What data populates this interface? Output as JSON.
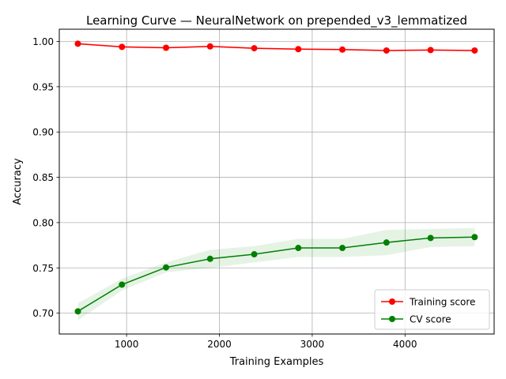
{
  "chart_data": {
    "type": "line",
    "title": "Learning Curve — NeuralNetwork on prepended_v3_lemmatized",
    "xlabel": "Training Examples",
    "ylabel": "Accuracy",
    "xlim": [
      275,
      4960
    ],
    "ylim": [
      0.677,
      1.0135
    ],
    "xticks": [
      1000,
      2000,
      3000,
      4000
    ],
    "xtick_labels": [
      "1000",
      "2000",
      "3000",
      "4000"
    ],
    "yticks": [
      0.7,
      0.75,
      0.8,
      0.85,
      0.9,
      0.95,
      1.0
    ],
    "ytick_labels": [
      "0.70",
      "0.75",
      "0.80",
      "0.85",
      "0.90",
      "0.95",
      "1.00"
    ],
    "grid": true,
    "legend_position": "lower-right",
    "x": [
      475,
      950,
      1425,
      1900,
      2375,
      2850,
      3325,
      3800,
      4275,
      4750
    ],
    "series": [
      {
        "name": "Training score",
        "color": "#ff0000",
        "band_color": "#ff0000",
        "marker": "circle",
        "values": [
          0.9975,
          0.994,
          0.993,
          0.9945,
          0.9925,
          0.9915,
          0.991,
          0.99,
          0.9905,
          0.99
        ],
        "band_upper": [
          0.9985,
          0.995,
          0.994,
          0.9955,
          0.9935,
          0.9925,
          0.992,
          0.991,
          0.9915,
          0.991
        ],
        "band_lower": [
          0.9965,
          0.993,
          0.992,
          0.9935,
          0.9915,
          0.9905,
          0.99,
          0.989,
          0.9895,
          0.989
        ]
      },
      {
        "name": "CV score",
        "color": "#008000",
        "band_color": "#2ca02c",
        "marker": "circle",
        "values": [
          0.702,
          0.7315,
          0.7505,
          0.76,
          0.765,
          0.772,
          0.772,
          0.778,
          0.783,
          0.784
        ],
        "band_upper": [
          0.711,
          0.738,
          0.756,
          0.77,
          0.774,
          0.782,
          0.782,
          0.792,
          0.793,
          0.794
        ],
        "band_lower": [
          0.692,
          0.725,
          0.745,
          0.75,
          0.756,
          0.762,
          0.762,
          0.764,
          0.773,
          0.774
        ]
      }
    ]
  }
}
